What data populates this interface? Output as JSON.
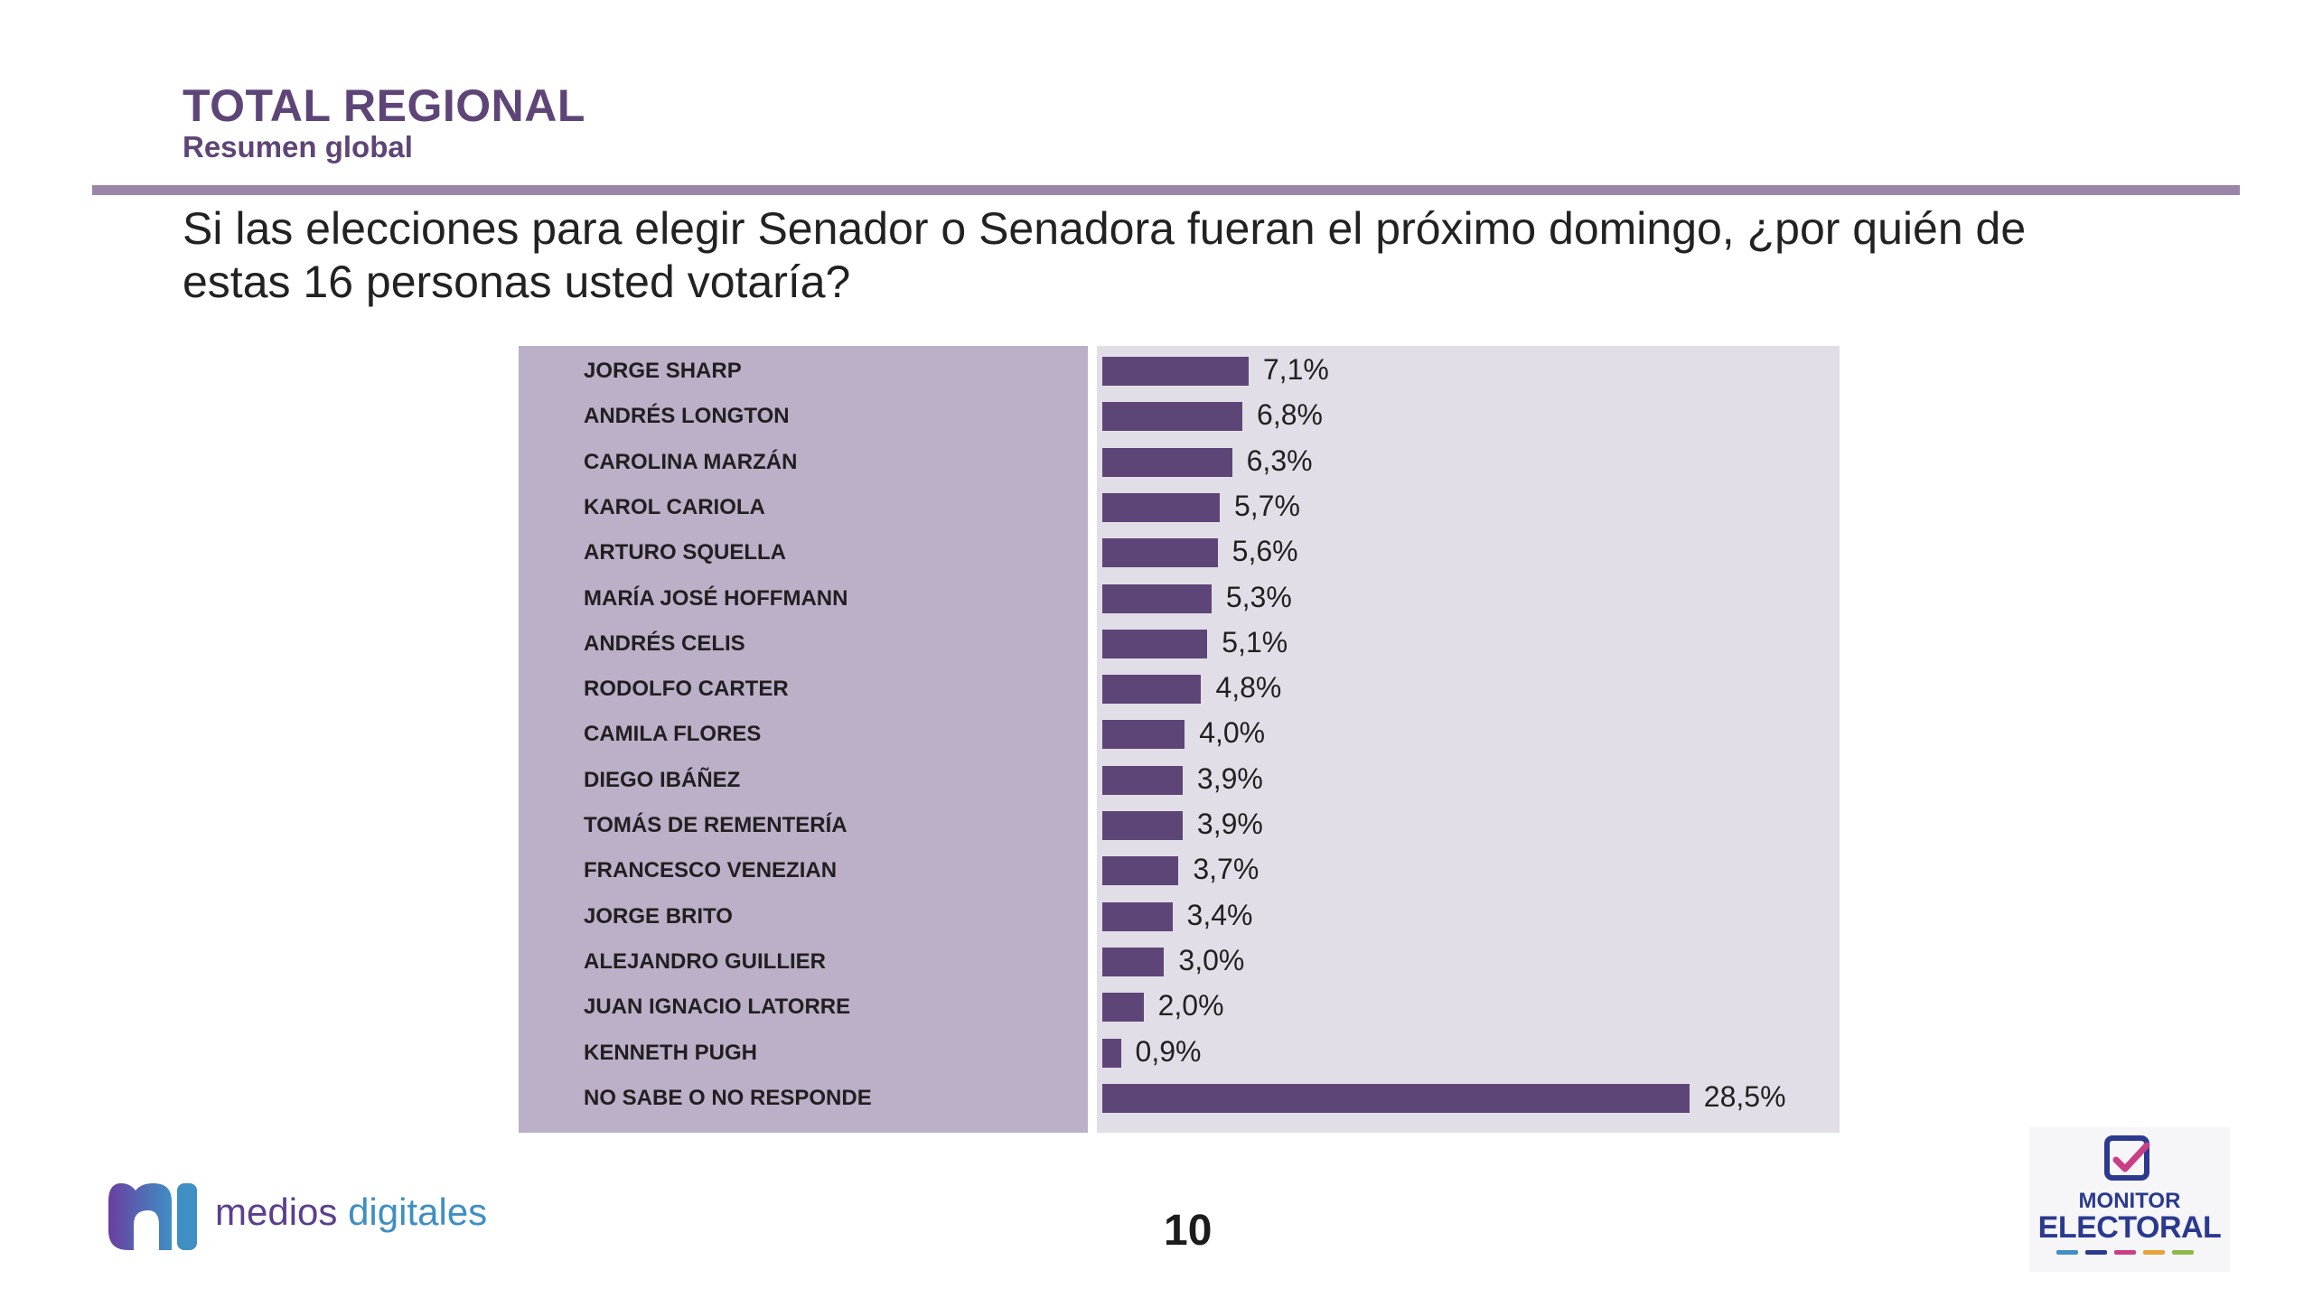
{
  "header": {
    "title": "TOTAL REGIONAL",
    "subtitle": "Resumen global"
  },
  "question": "Si las elecciones para elegir Senador o Senadora fueran el próximo domingo, ¿por quién de estas 16 personas usted votaría?",
  "chart_data": {
    "type": "bar",
    "orientation": "horizontal",
    "categories": [
      "JORGE SHARP",
      "ANDRÉS LONGTON",
      "CAROLINA MARZÁN",
      "KAROL CARIOLA",
      "ARTURO SQUELLA",
      "MARÍA JOSÉ HOFFMANN",
      "ANDRÉS CELIS",
      "RODOLFO CARTER",
      "CAMILA FLORES",
      "DIEGO IBÁÑEZ",
      "TOMÁS DE REMENTERÍA",
      "FRANCESCO VENEZIAN",
      "JORGE BRITO",
      "ALEJANDRO GUILLIER",
      "JUAN IGNACIO LATORRE",
      "KENNETH PUGH",
      "NO SABE O NO RESPONDE"
    ],
    "values": [
      7.1,
      6.8,
      6.3,
      5.7,
      5.6,
      5.3,
      5.1,
      4.8,
      4.0,
      3.9,
      3.9,
      3.7,
      3.4,
      3.0,
      2.0,
      0.9,
      28.5
    ],
    "value_labels": [
      "7,1%",
      "6,8%",
      "6,3%",
      "5,7%",
      "5,6%",
      "5,3%",
      "5,1%",
      "4,8%",
      "4,0%",
      "3,9%",
      "3,9%",
      "3,7%",
      "3,4%",
      "3,0%",
      "2,0%",
      "0,9%",
      "28,5%"
    ],
    "unit": "%",
    "xlim": [
      0,
      30
    ],
    "bar_color": "#5e4577",
    "label_panel_color": "#bcafc8",
    "bar_panel_color": "#e2dee7",
    "grid": false,
    "legend": "none"
  },
  "footer": {
    "page_number": "10",
    "logo_left": {
      "word1": "medios",
      "word2": "digitales",
      "word1_color": "#5b3f8e",
      "word2_color": "#3f8fc4"
    },
    "logo_right": {
      "word1": "MONITOR",
      "word2": "ELECTORAL",
      "text_color": "#2b3a8f",
      "check_color": "#c93f86"
    }
  }
}
